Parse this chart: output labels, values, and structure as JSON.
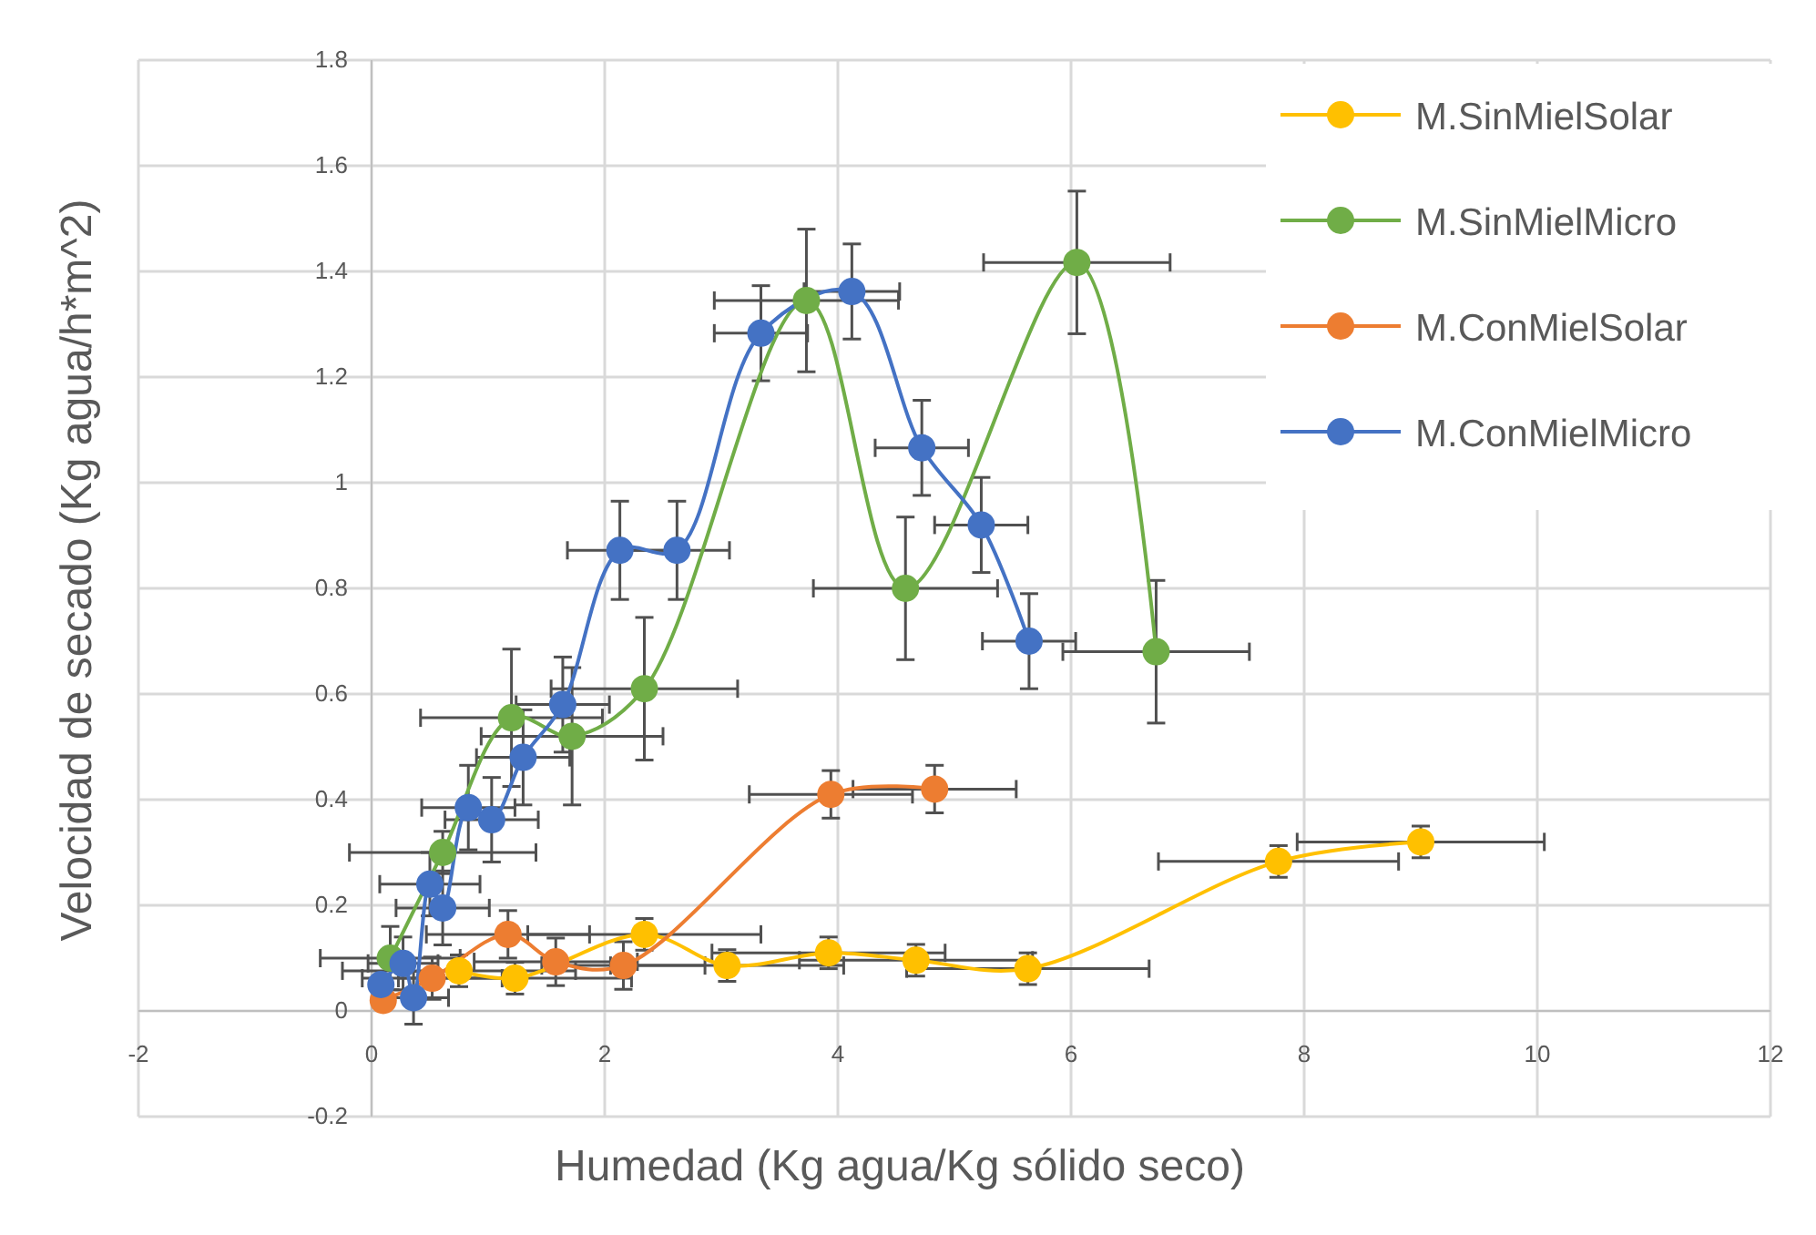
{
  "chart_data": {
    "type": "line",
    "xlabel": "Humedad (Kg agua/Kg sólido seco)",
    "ylabel": "Velocidad de secado (Kg agua/h*m^2)",
    "xlim": [
      -2,
      12
    ],
    "ylim": [
      -0.2,
      1.8
    ],
    "xticks": [
      -2,
      0,
      2,
      4,
      6,
      8,
      10,
      12
    ],
    "yticks": [
      -0.2,
      0,
      0.2,
      0.4,
      0.6,
      0.8,
      1,
      1.2,
      1.4,
      1.6,
      1.8
    ],
    "grid": true,
    "legend": "right",
    "marker": "circle",
    "line_style": "solid",
    "series": [
      {
        "name": "M.SinMielSolar",
        "color": "#ffc000",
        "x": [
          0.75,
          1.23,
          2.34,
          3.05,
          3.92,
          4.67,
          5.63,
          7.78,
          9.0
        ],
        "values": [
          0.076,
          0.062,
          0.145,
          0.086,
          0.11,
          0.096,
          0.08,
          0.283,
          0.32
        ],
        "errors": [
          0.03,
          0.03,
          0.03,
          0.03,
          0.03,
          0.03,
          0.03,
          0.03,
          0.03
        ],
        "xerrors": [
          1.0,
          1.0,
          1.0,
          1.0,
          1.0,
          1.0,
          1.04,
          1.03,
          1.06
        ]
      },
      {
        "name": "M.SinMielMicro",
        "color": "#70ad47",
        "x": [
          0.16,
          0.61,
          1.2,
          1.72,
          2.34,
          3.73,
          4.58,
          6.05,
          6.73
        ],
        "values": [
          0.1,
          0.3,
          0.555,
          0.52,
          0.61,
          1.345,
          0.8,
          1.417,
          0.68
        ],
        "errors": [
          0.06,
          0.04,
          0.13,
          0.13,
          0.135,
          0.135,
          0.135,
          0.135,
          0.135
        ],
        "xerrors": [
          0.6,
          0.8,
          0.78,
          0.78,
          0.8,
          0.79,
          0.79,
          0.8,
          0.8
        ]
      },
      {
        "name": "M.ConMielSolar",
        "color": "#ed7d31",
        "x": [
          0.1,
          0.52,
          1.17,
          1.58,
          2.16,
          3.94,
          4.83
        ],
        "values": [
          0.02,
          0.062,
          0.145,
          0.093,
          0.086,
          0.41,
          0.42
        ],
        "errors": [
          null,
          0.04,
          0.045,
          0.045,
          0.045,
          0.045,
          0.045
        ],
        "xerrors": [
          null,
          0.6,
          0.7,
          0.7,
          0.7,
          0.7,
          0.7
        ]
      },
      {
        "name": "M.ConMielMicro",
        "color": "#4472c4",
        "x": [
          0.08,
          0.27,
          0.36,
          0.5,
          0.61,
          0.83,
          1.03,
          1.3,
          1.64,
          2.13,
          2.62,
          3.34,
          4.12,
          4.72,
          5.23,
          5.64
        ],
        "values": [
          0.05,
          0.09,
          0.025,
          0.24,
          0.195,
          0.385,
          0.362,
          0.48,
          0.58,
          0.872,
          0.872,
          1.283,
          1.362,
          1.066,
          0.92,
          0.7
        ],
        "errors": [
          null,
          0.05,
          0.05,
          0.06,
          0.07,
          0.08,
          0.08,
          0.09,
          0.09,
          0.093,
          0.093,
          0.09,
          0.09,
          0.09,
          0.09,
          0.09
        ],
        "xerrors": [
          null,
          0.3,
          0.3,
          0.43,
          0.4,
          0.4,
          0.4,
          0.4,
          0.4,
          0.45,
          0.45,
          0.4,
          0.41,
          0.4,
          0.4,
          0.4
        ]
      }
    ]
  }
}
